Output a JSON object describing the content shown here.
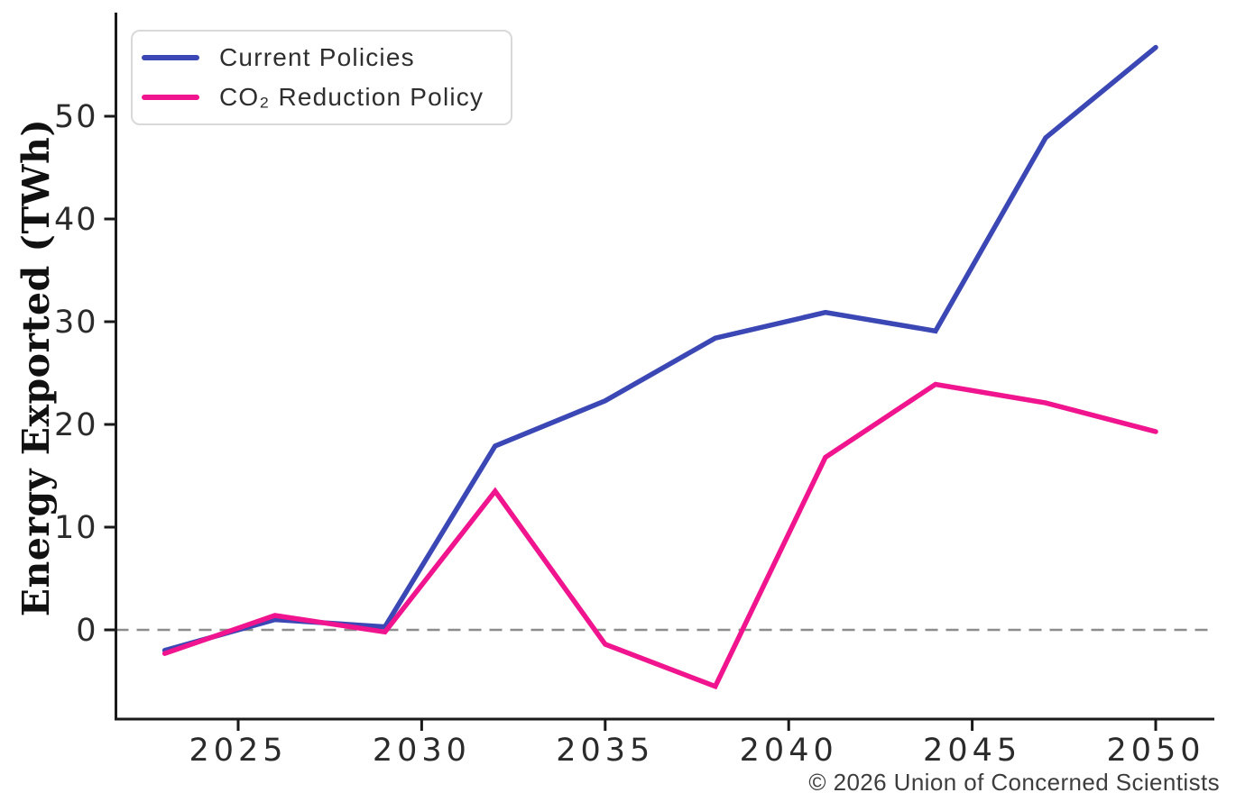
{
  "figure": {
    "attribution": "© 2026 Union of Concerned Scientists"
  },
  "chart_data": {
    "type": "line",
    "title": "",
    "xlabel": "",
    "ylabel": "Energy Exported (TWh)",
    "x": [
      2023,
      2026,
      2029,
      2032,
      2035,
      2038,
      2041,
      2044,
      2047,
      2050
    ],
    "series": [
      {
        "name": "Current Policies",
        "color": "#3a47b4",
        "values": [
          -2.0,
          1.0,
          0.3,
          17.9,
          22.3,
          28.4,
          30.9,
          29.1,
          47.9,
          56.7
        ]
      },
      {
        "name": "CO₂ Reduction Policy",
        "color": "#f0148e",
        "values": [
          -2.3,
          1.4,
          -0.2,
          13.5,
          -1.4,
          -5.5,
          16.8,
          23.9,
          22.1,
          19.3
        ]
      }
    ],
    "x_ticks": [
      2025,
      2030,
      2035,
      2040,
      2045,
      2050
    ],
    "y_ticks": [
      0,
      10,
      20,
      30,
      40,
      50
    ],
    "xlim": [
      2021.7,
      2051.6
    ],
    "ylim": [
      -8.6,
      60.1
    ],
    "grid": false,
    "zero_line": true,
    "legend_position": "top-left",
    "colors": {
      "axis": "#1a1a1a",
      "tick_label": "#2b2b2b",
      "zero_line": "#8c8c8c",
      "legend_border": "#d9d9d9"
    }
  }
}
